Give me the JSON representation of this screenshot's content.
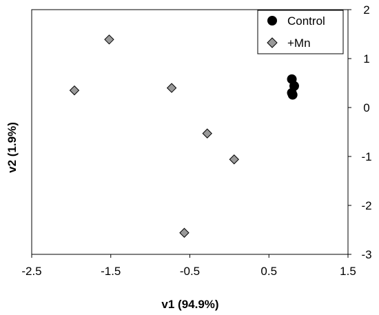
{
  "chart_data": {
    "type": "scatter",
    "title": "",
    "xlabel": "v1 (94.9%)",
    "ylabel": "v2 (1.9%)",
    "xlim": [
      -2.5,
      1.5
    ],
    "ylim": [
      -3,
      2
    ],
    "x_ticks": [
      "-2.5",
      "-1.5",
      "-0.5",
      "0.5",
      "1.5"
    ],
    "x_tick_values": [
      -2.5,
      -1.5,
      -0.5,
      0.5,
      1.5
    ],
    "y_ticks": [
      "2",
      "1",
      "0",
      "-1",
      "-2",
      "-3"
    ],
    "y_tick_values": [
      2,
      1,
      0,
      -1,
      -2,
      -3
    ],
    "y_axis_side": "right",
    "grid": false,
    "legend_position": "top-right",
    "series": [
      {
        "name": "Control",
        "marker": "circle",
        "color": "#000000",
        "points": [
          [
            0.79,
            0.58
          ],
          [
            0.82,
            0.44
          ],
          [
            0.79,
            0.3
          ],
          [
            0.8,
            0.26
          ]
        ]
      },
      {
        "name": "+Mn",
        "marker": "diamond",
        "color": "#999999",
        "points": [
          [
            -1.52,
            1.39
          ],
          [
            -1.96,
            0.35
          ],
          [
            -0.73,
            0.4
          ],
          [
            -0.28,
            -0.53
          ],
          [
            0.06,
            -1.06
          ],
          [
            -0.57,
            -2.56
          ]
        ]
      }
    ]
  }
}
